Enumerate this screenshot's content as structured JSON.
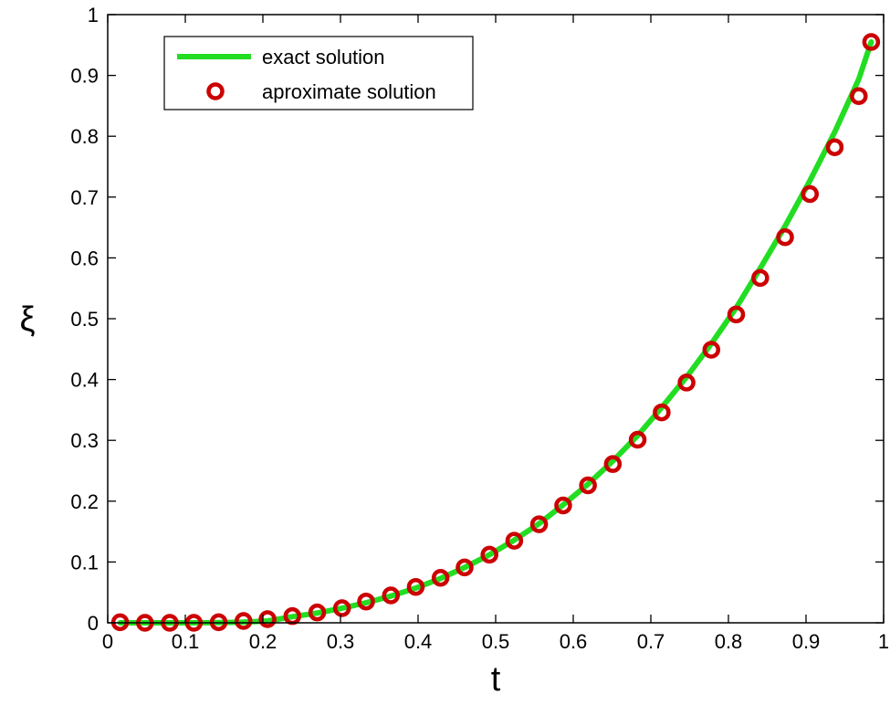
{
  "chart_data": {
    "type": "line",
    "title": "",
    "xlabel": "t",
    "ylabel": "ξ",
    "xlim": [
      0,
      1
    ],
    "ylim": [
      0,
      1
    ],
    "xticks": [
      "0",
      "0.1",
      "0.2",
      "0.3",
      "0.4",
      "0.5",
      "0.6",
      "0.7",
      "0.8",
      "0.9",
      "1"
    ],
    "yticks": [
      "0",
      "0.1",
      "0.2",
      "0.3",
      "0.4",
      "0.5",
      "0.6",
      "0.7",
      "0.8",
      "0.9",
      "1"
    ],
    "grid": false,
    "legend_position": "top-left",
    "series": [
      {
        "name": "exact solution",
        "style": "line",
        "color": "#22dd22",
        "x": [
          0.016,
          0.048,
          0.079,
          0.111,
          0.143,
          0.175,
          0.206,
          0.238,
          0.27,
          0.302,
          0.333,
          0.365,
          0.397,
          0.429,
          0.46,
          0.492,
          0.524,
          0.556,
          0.587,
          0.619,
          0.651,
          0.683,
          0.714,
          0.746,
          0.778,
          0.81,
          0.841,
          0.873,
          0.905,
          0.937,
          0.968,
          0.984
        ],
        "y": [
          0.0,
          0.0,
          0.0,
          0.0,
          0.0004,
          0.001,
          0.003,
          0.01,
          0.016,
          0.024,
          0.033,
          0.044,
          0.057,
          0.073,
          0.091,
          0.112,
          0.136,
          0.163,
          0.194,
          0.228,
          0.266,
          0.308,
          0.354,
          0.404,
          0.459,
          0.518,
          0.583,
          0.652,
          0.727,
          0.807,
          0.894,
          0.955
        ]
      },
      {
        "name": "aproximate solution",
        "style": "markers",
        "color": "#cc0000",
        "x": [
          0.016,
          0.048,
          0.08,
          0.111,
          0.143,
          0.175,
          0.206,
          0.238,
          0.27,
          0.302,
          0.333,
          0.365,
          0.397,
          0.429,
          0.46,
          0.492,
          0.524,
          0.556,
          0.587,
          0.619,
          0.651,
          0.683,
          0.714,
          0.746,
          0.778,
          0.81,
          0.841,
          0.873,
          0.905,
          0.937,
          0.968,
          0.984
        ],
        "y": [
          0.001,
          0.0,
          0.0,
          0.0,
          0.001,
          0.003,
          0.006,
          0.011,
          0.017,
          0.024,
          0.035,
          0.045,
          0.059,
          0.074,
          0.091,
          0.112,
          0.135,
          0.162,
          0.193,
          0.226,
          0.261,
          0.301,
          0.346,
          0.395,
          0.449,
          0.507,
          0.567,
          0.634,
          0.705,
          0.782,
          0.866,
          0.955
        ]
      }
    ]
  }
}
